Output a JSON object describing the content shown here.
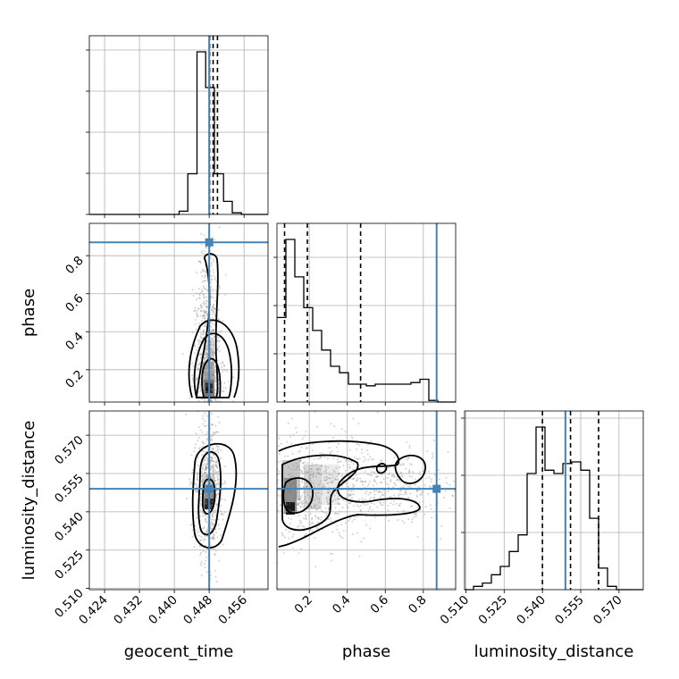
{
  "colors": {
    "truth": "#4682b4",
    "hist": "#000000",
    "quantile": "#000000",
    "grid": "#b0b0b0",
    "scatter": "#7f7f7f"
  },
  "chart_data": {
    "type": "corner",
    "parameters": [
      "geocent_time",
      "phase",
      "luminosity_distance"
    ],
    "truths": {
      "geocent_time": 0.448,
      "phase": 0.87,
      "luminosity_distance": 0.549
    },
    "ranges": {
      "geocent_time": [
        0.4205,
        0.4615
      ],
      "phase": [
        0.03,
        0.97
      ],
      "luminosity_distance": [
        0.5095,
        0.5795
      ]
    },
    "ticks": {
      "geocent_time": {
        "values": [
          0.424,
          0.432,
          0.44,
          0.448,
          0.456
        ],
        "labels": [
          "0.424",
          "0.432",
          "0.440",
          "0.448",
          "0.456"
        ]
      },
      "phase_x": {
        "values": [
          0.2,
          0.4,
          0.6,
          0.8
        ],
        "labels": [
          "0.2",
          "0.4",
          "0.6",
          "0.8"
        ]
      },
      "phase_y": {
        "values": [
          0.2,
          0.4,
          0.6,
          0.8
        ],
        "labels": [
          "0.2",
          "0.4",
          "0.6",
          "0.8"
        ]
      },
      "luminosity_distance": {
        "values": [
          0.51,
          0.525,
          0.54,
          0.555,
          0.57
        ],
        "labels": [
          "0.510",
          "0.525",
          "0.540",
          "0.555",
          "0.570"
        ]
      }
    },
    "quantiles": {
      "geocent_time": [
        0.4481,
        0.4489,
        0.4499
      ],
      "phase": [
        0.07,
        0.19,
        0.47
      ],
      "luminosity_distance": [
        0.54,
        0.551,
        0.562
      ]
    },
    "hist_geocent_time": {
      "edges": [
        0.4205,
        0.4226,
        0.4247,
        0.4267,
        0.4288,
        0.4308,
        0.4329,
        0.4349,
        0.437,
        0.439,
        0.4411,
        0.4431,
        0.4452,
        0.4472,
        0.4492,
        0.4513,
        0.4533,
        0.4554,
        0.4574,
        0.4595,
        0.4615
      ],
      "counts": [
        0,
        0,
        0,
        0,
        0,
        0,
        0,
        0,
        0,
        0,
        2,
        25,
        100,
        78,
        25,
        8,
        1,
        0,
        0,
        0
      ]
    },
    "hist_phase": {
      "edges": [
        0.03,
        0.077,
        0.124,
        0.171,
        0.218,
        0.265,
        0.312,
        0.359,
        0.406,
        0.453,
        0.5,
        0.547,
        0.594,
        0.641,
        0.688,
        0.735,
        0.782,
        0.829,
        0.876,
        0.923,
        0.97
      ],
      "counts": [
        52,
        100,
        77,
        58,
        44,
        32,
        22,
        18,
        11,
        11,
        10,
        11,
        11,
        11,
        11,
        12,
        14,
        1,
        0,
        0
      ]
    },
    "hist_luminosity_distance": {
      "edges": [
        0.5095,
        0.513,
        0.5165,
        0.52,
        0.5235,
        0.527,
        0.5305,
        0.534,
        0.5375,
        0.541,
        0.5445,
        0.548,
        0.5515,
        0.555,
        0.5585,
        0.562,
        0.5655,
        0.569,
        0.5725,
        0.576,
        0.5795
      ],
      "counts": [
        0,
        2,
        4,
        9,
        14,
        23,
        33,
        70,
        98,
        72,
        70,
        76,
        77,
        72,
        43,
        13,
        2,
        0,
        0,
        0
      ]
    }
  }
}
